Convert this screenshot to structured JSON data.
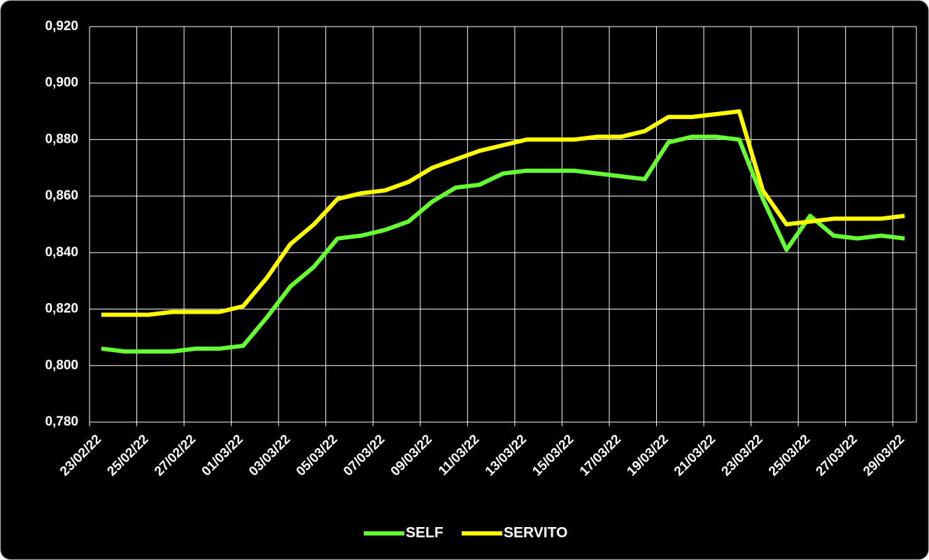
{
  "chart_data": {
    "type": "line",
    "categories": [
      "23/02/22",
      null,
      "25/02/22",
      null,
      "27/02/22",
      null,
      "01/03/22",
      null,
      "03/03/22",
      null,
      "05/03/22",
      null,
      "07/03/22",
      null,
      "09/03/22",
      null,
      "11/03/22",
      null,
      "13/03/22",
      null,
      "15/03/22",
      null,
      "17/03/22",
      null,
      "19/03/22",
      null,
      "21/03/22",
      null,
      "23/03/22",
      null,
      "25/03/22",
      null,
      "27/03/22",
      null,
      "29/03/22"
    ],
    "series": [
      {
        "name": "SELF",
        "color": "#66ff33",
        "values": [
          0.806,
          0.805,
          0.805,
          0.805,
          0.806,
          0.806,
          0.807,
          0.817,
          0.828,
          0.835,
          0.845,
          0.846,
          0.848,
          0.851,
          0.858,
          0.863,
          0.864,
          0.868,
          0.869,
          0.869,
          0.869,
          0.868,
          0.867,
          0.866,
          0.879,
          0.881,
          0.881,
          0.88,
          0.859,
          0.841,
          0.853,
          0.846,
          0.845,
          0.846,
          0.845
        ]
      },
      {
        "name": "SERVITO",
        "color": "#ffff00",
        "values": [
          0.818,
          0.818,
          0.818,
          0.819,
          0.819,
          0.819,
          0.821,
          0.831,
          0.843,
          0.85,
          0.859,
          0.861,
          0.862,
          0.865,
          0.87,
          0.873,
          0.876,
          0.878,
          0.88,
          0.88,
          0.88,
          0.881,
          0.881,
          0.883,
          0.888,
          0.888,
          0.889,
          0.89,
          0.862,
          0.85,
          0.851,
          0.852,
          0.852,
          0.852,
          0.853
        ]
      }
    ],
    "ylim": [
      0.78,
      0.92
    ],
    "yticks": [
      {
        "value": 0.78,
        "label": "0,780"
      },
      {
        "value": 0.8,
        "label": "0,800"
      },
      {
        "value": 0.82,
        "label": "0,820"
      },
      {
        "value": 0.84,
        "label": "0,840"
      },
      {
        "value": 0.86,
        "label": "0,860"
      },
      {
        "value": 0.88,
        "label": "0,880"
      },
      {
        "value": 0.9,
        "label": "0,900"
      },
      {
        "value": 0.92,
        "label": "0,920"
      }
    ],
    "grid": true,
    "legend": "bottom"
  }
}
